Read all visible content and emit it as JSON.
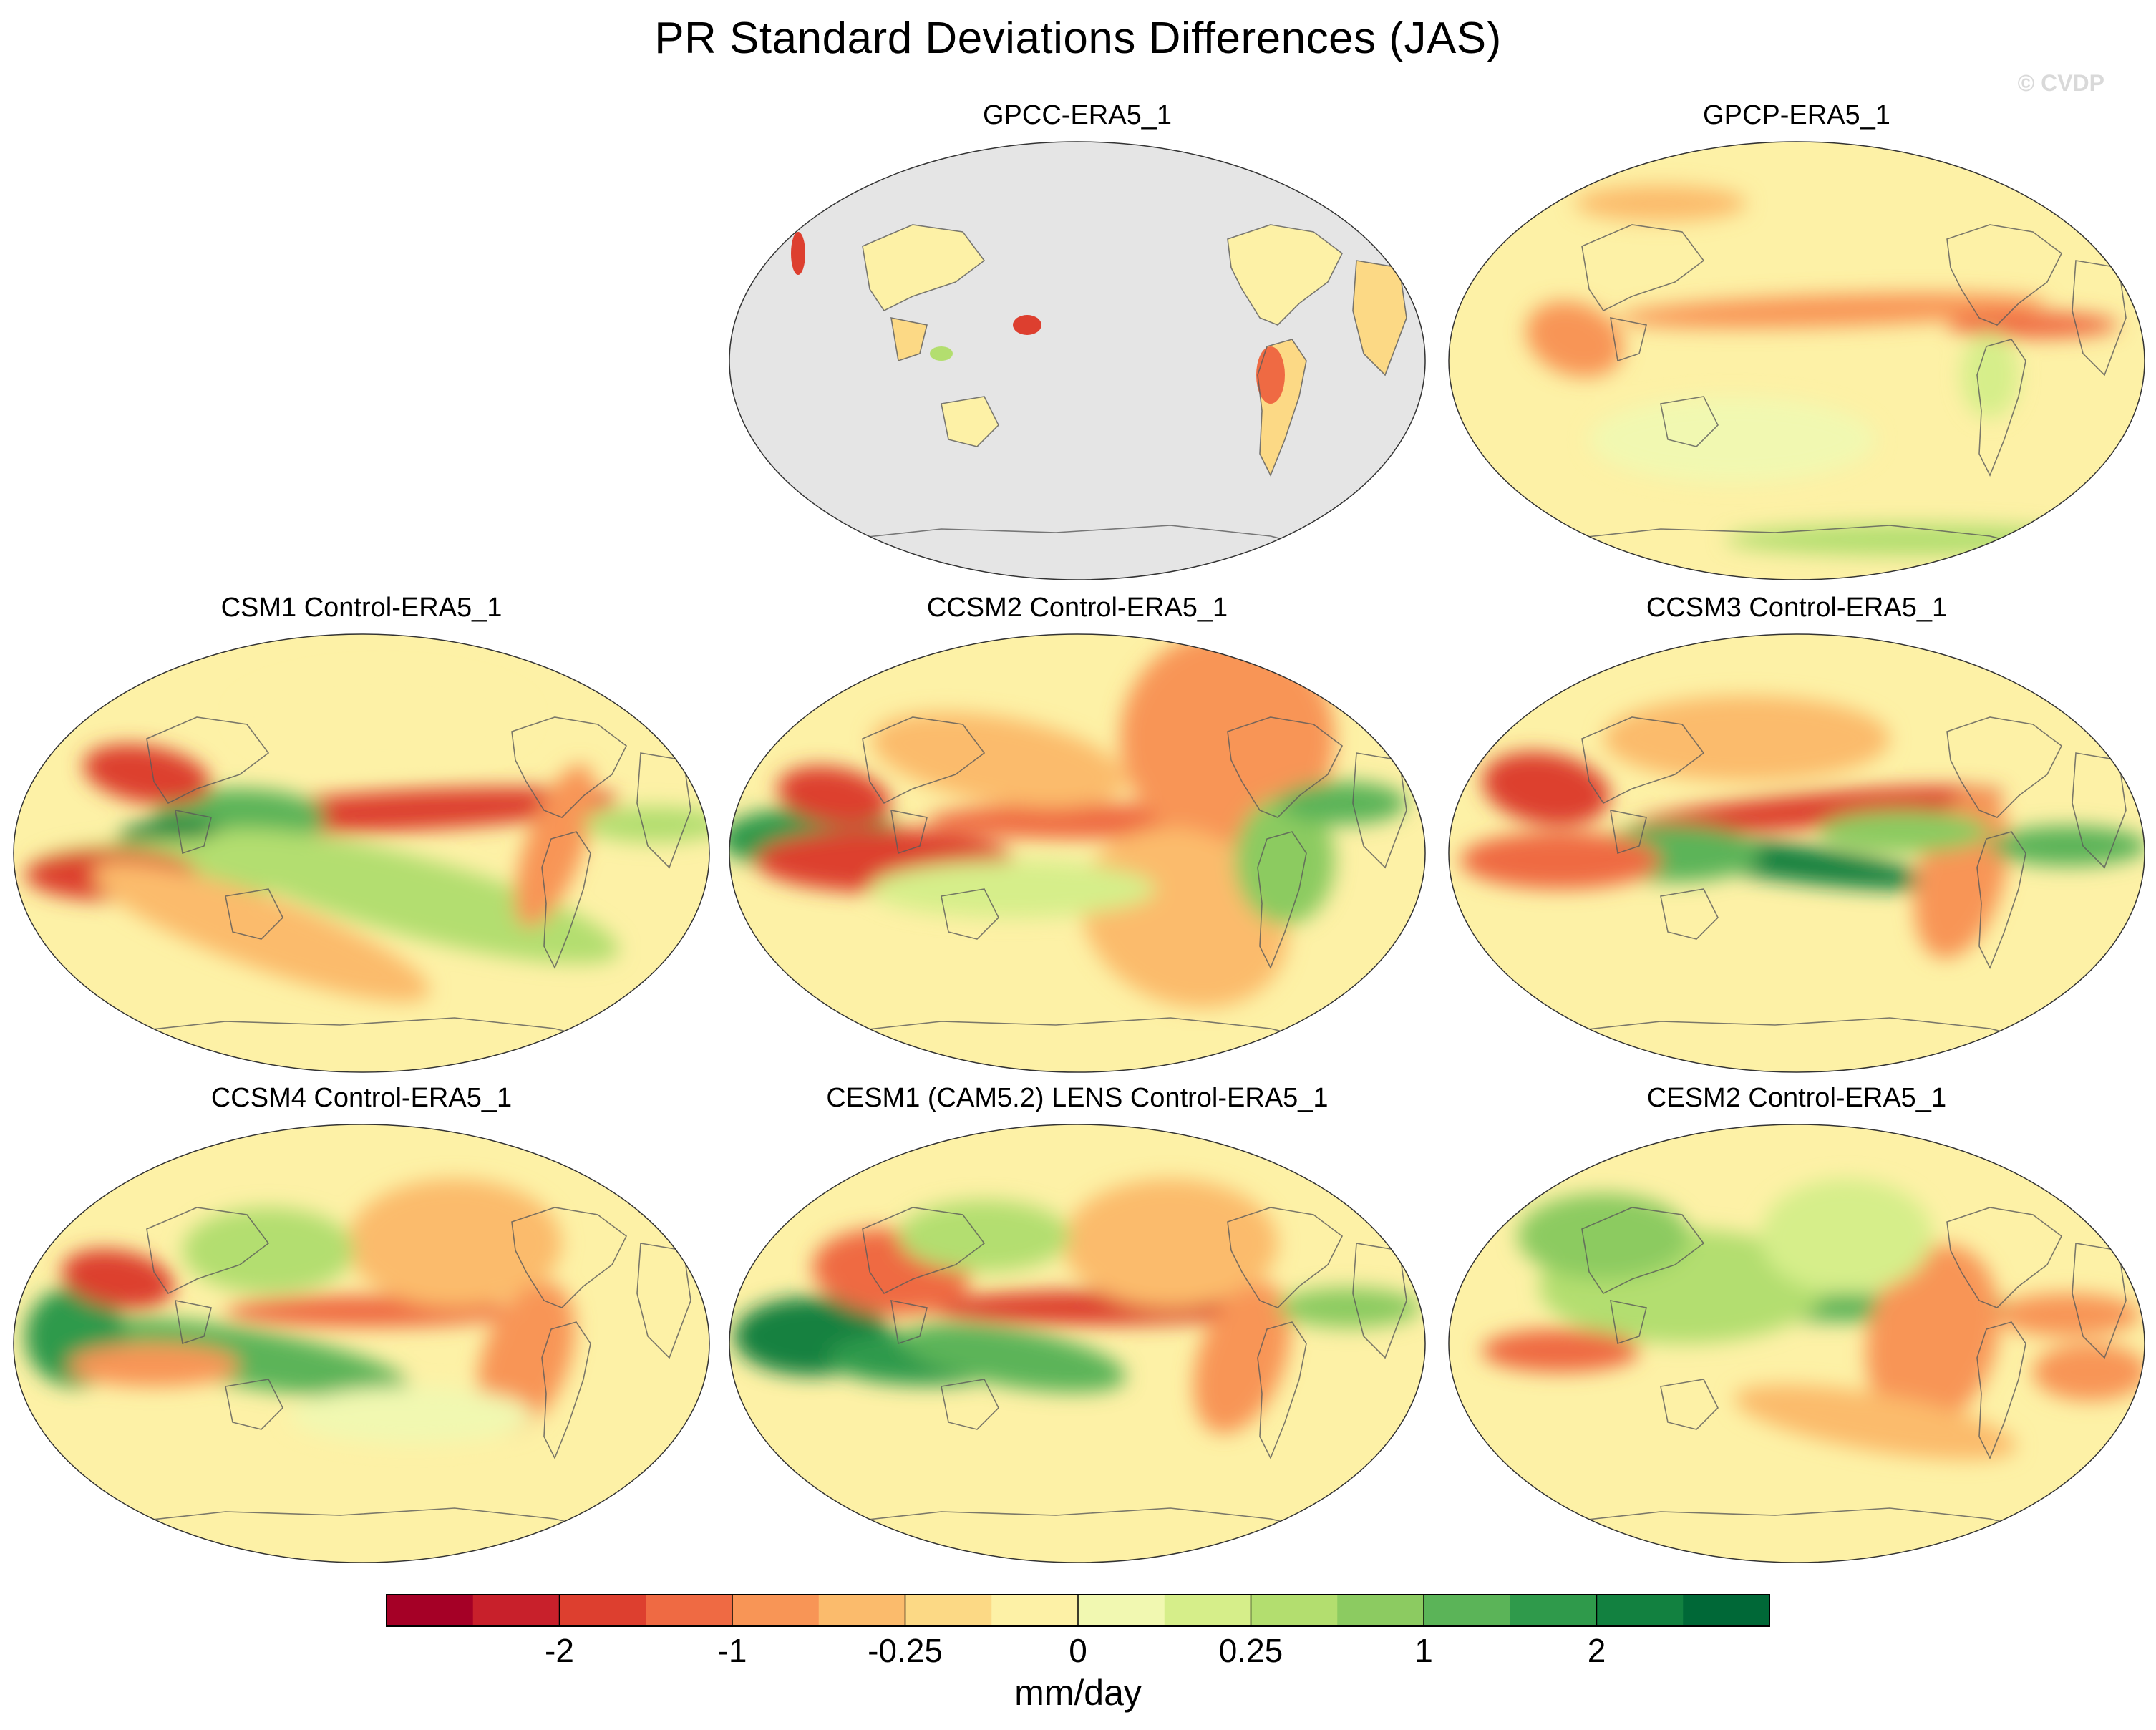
{
  "figure": {
    "title": "PR Standard Deviations Differences (JAS)",
    "watermark": "© CVDP"
  },
  "chart_data": [
    {
      "type": "heatmap",
      "title": "GPCC-ERA5_1",
      "domain": "land-only",
      "missing_color": "#e5e5e5",
      "anomalies": "mostly small, land only; red patches over Andes, SE Asia islands"
    },
    {
      "type": "heatmap",
      "title": "GPCP-ERA5_1",
      "domain": "global",
      "anomalies": "negative band along Pacific ITCZ (~-0.5 to -1), Atlantic ITCZ negative"
    },
    {
      "type": "heatmap",
      "title": "CSM1 Control-ERA5_1",
      "domain": "global",
      "anomalies": "strong negative equatorial Pacific (~-2), positive off-equator Pacific (~+1 to +2)"
    },
    {
      "type": "heatmap",
      "title": "CCSM2 Control-ERA5_1",
      "domain": "global",
      "anomalies": "negative equatorial Pacific, positive Indian Ocean (~+2)"
    },
    {
      "type": "heatmap",
      "title": "CCSM3 Control-ERA5_1",
      "domain": "global",
      "anomalies": "negative north-equatorial Pacific, strong positive south-equatorial Pacific (~+2)"
    },
    {
      "type": "heatmap",
      "title": "CCSM4 Control-ERA5_1",
      "domain": "global",
      "anomalies": "mixed; positive equatorial Pacific, negative northeast Pacific"
    },
    {
      "type": "heatmap",
      "title": "CESM1 (CAM5.2) LENS Control-ERA5_1",
      "domain": "global",
      "anomalies": "positive Indian Ocean and west Pacific, negative east Pacific ITCZ"
    },
    {
      "type": "heatmap",
      "title": "CESM2 Control-ERA5_1",
      "domain": "global",
      "anomalies": "positive western Pacific, negative Atlantic and South America"
    }
  ],
  "colorbar": {
    "unit_label": "mm/day",
    "tick_labels": [
      "-2",
      "-1",
      "-0.25",
      "0",
      "0.25",
      "1",
      "2"
    ],
    "tick_boundaries": [
      2,
      4,
      6,
      8,
      10,
      12,
      14
    ],
    "colors": [
      "#a50026",
      "#c8202b",
      "#dd3f2f",
      "#ef6a43",
      "#f89556",
      "#fbbb6c",
      "#fcd985",
      "#fdf1a6",
      "#f1f8b1",
      "#d6ee8a",
      "#b3de6f",
      "#8ccb61",
      "#5bb458",
      "#2f9a4b",
      "#128140",
      "#006837"
    ]
  }
}
